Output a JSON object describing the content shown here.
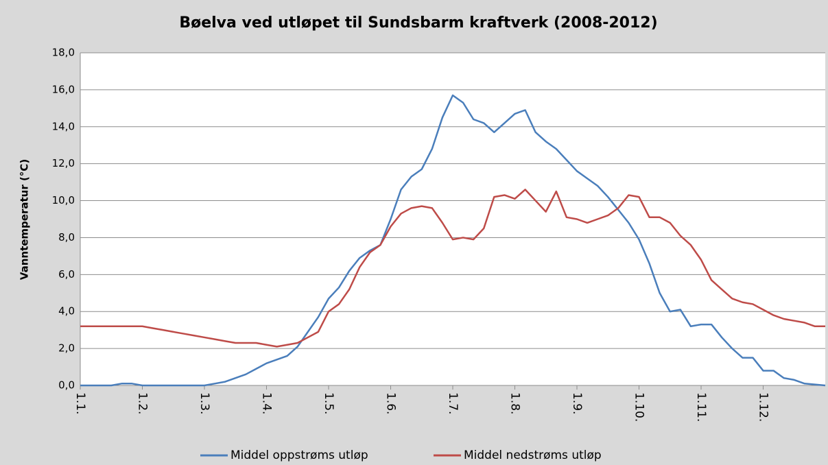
{
  "chart_data": {
    "type": "line",
    "title": "Bøelva ved utløpet til Sundsbarm  kraftverk (2008-2012)",
    "y_label": "Vanntemperatur (°C)",
    "categories": [
      "1.1.",
      null,
      null,
      null,
      null,
      null,
      "1.2.",
      null,
      null,
      null,
      null,
      null,
      "1.3.",
      null,
      null,
      null,
      null,
      null,
      "1.4.",
      null,
      null,
      null,
      null,
      null,
      "1.5.",
      null,
      null,
      null,
      null,
      null,
      "1.6.",
      null,
      null,
      null,
      null,
      null,
      "1.7.",
      null,
      null,
      null,
      null,
      null,
      "1.8.",
      null,
      null,
      null,
      null,
      null,
      "1.9.",
      null,
      null,
      null,
      null,
      null,
      "1.10.",
      null,
      null,
      null,
      null,
      null,
      "1.11.",
      null,
      null,
      null,
      null,
      null,
      "1.12.",
      null,
      null,
      null,
      null,
      null,
      null
    ],
    "series": [
      {
        "name": "Middel oppstrøms utløp",
        "color": "#4a7ebb",
        "values": [
          0,
          0,
          0,
          0,
          0.1,
          0.1,
          0,
          0,
          0,
          0,
          0,
          0,
          0,
          0.1,
          0.2,
          0.4,
          0.6,
          0.9,
          1.2,
          1.4,
          1.6,
          2.1,
          2.9,
          3.7,
          4.7,
          5.3,
          6.2,
          6.9,
          7.3,
          7.6,
          9.0,
          10.6,
          11.3,
          11.7,
          12.8,
          14.5,
          15.7,
          15.3,
          14.4,
          14.2,
          13.7,
          14.2,
          14.7,
          14.9,
          13.7,
          13.2,
          12.8,
          12.2,
          11.6,
          11.2,
          10.8,
          10.2,
          9.5,
          8.8,
          7.9,
          6.6,
          5.0,
          4.0,
          4.1,
          3.2,
          3.3,
          3.3,
          2.6,
          2.0,
          1.5,
          1.5,
          0.8,
          0.8,
          0.4,
          0.3,
          0.1,
          0.05,
          0
        ]
      },
      {
        "name": "Middel nedstrøms utløp",
        "color": "#be4b48",
        "values": [
          3.2,
          3.2,
          3.2,
          3.2,
          3.2,
          3.2,
          3.2,
          3.1,
          3.0,
          2.9,
          2.8,
          2.7,
          2.6,
          2.5,
          2.4,
          2.3,
          2.3,
          2.3,
          2.2,
          2.1,
          2.2,
          2.3,
          2.6,
          2.9,
          4.0,
          4.4,
          5.2,
          6.4,
          7.2,
          7.6,
          8.6,
          9.3,
          9.6,
          9.7,
          9.6,
          8.8,
          7.9,
          8.0,
          7.9,
          8.5,
          10.2,
          10.3,
          10.1,
          10.6,
          10.0,
          9.4,
          10.5,
          9.1,
          9.0,
          8.8,
          9.0,
          9.2,
          9.6,
          10.3,
          10.2,
          9.1,
          9.1,
          8.8,
          8.1,
          7.6,
          6.8,
          5.7,
          5.2,
          4.7,
          4.5,
          4.4,
          4.1,
          3.8,
          3.6,
          3.5,
          3.4,
          3.2,
          3.2
        ]
      }
    ],
    "ylim": [
      0,
      18
    ],
    "yticks": [
      {
        "value": 0,
        "label": "0,0"
      },
      {
        "value": 2,
        "label": "2,0"
      },
      {
        "value": 4,
        "label": "4,0"
      },
      {
        "value": 6,
        "label": "6,0"
      },
      {
        "value": 8,
        "label": "8,0"
      },
      {
        "value": 10,
        "label": "10,0"
      },
      {
        "value": 12,
        "label": "12,0"
      },
      {
        "value": 14,
        "label": "14,0"
      },
      {
        "value": 16,
        "label": "16,0"
      },
      {
        "value": 18,
        "label": "18,0"
      }
    ],
    "grid": true,
    "legend": "bottom"
  }
}
